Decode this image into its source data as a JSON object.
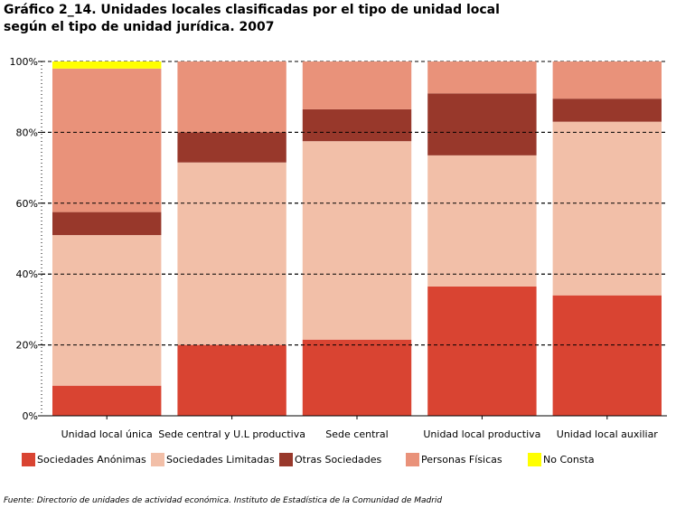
{
  "title_line1": "Gráfico 2_14. Unidades locales clasificadas por el tipo de unidad local",
  "title_line2": "según el tipo de unidad jurídica. 2007",
  "source": "Fuente: Directorio de unidades de actividad económica. Instituto de Estadística de la Comunidad de Madrid",
  "chart_data": {
    "type": "bar",
    "stacked": true,
    "title": "Gráfico 2_14. Unidades locales clasificadas por el tipo de unidad local según el tipo de unidad jurídica. 2007",
    "xlabel": "",
    "ylabel": "",
    "ylim": [
      0,
      100
    ],
    "yticks": [
      "0%",
      "20%",
      "40%",
      "60%",
      "80%",
      "100%"
    ],
    "grid": true,
    "legend_position": "bottom",
    "categories": [
      "Unidad local única",
      "Sede central y U.L productiva",
      "Sede central",
      "Unidad local productiva",
      "Unidad local auxiliar"
    ],
    "series": [
      {
        "name": "Sociedades Anónimas",
        "color": "#d94432",
        "values": [
          8.5,
          20.0,
          21.5,
          36.5,
          34.0
        ]
      },
      {
        "name": "Sociedades Limitadas",
        "color": "#f2bfa8",
        "values": [
          42.5,
          51.5,
          56.0,
          37.0,
          49.0
        ]
      },
      {
        "name": "Otras Sociedades",
        "color": "#98382b",
        "values": [
          6.5,
          8.5,
          9.0,
          17.5,
          6.5
        ]
      },
      {
        "name": "Personas Físicas",
        "color": "#e9927a",
        "values": [
          40.5,
          20.0,
          13.5,
          9.0,
          10.5
        ]
      },
      {
        "name": "No Consta",
        "color": "#ffff00",
        "values": [
          2.0,
          0,
          0,
          0,
          0
        ]
      }
    ]
  }
}
